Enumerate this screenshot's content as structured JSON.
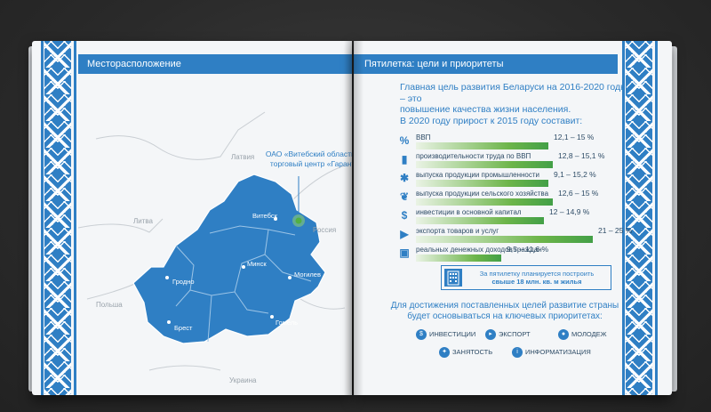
{
  "left_page": {
    "header": "Месторасположение",
    "callout": [
      "ОАО «Витебский областной",
      "торговый центр «Гарант»"
    ],
    "countries": [
      "Латвия",
      "Литва",
      "Россия",
      "Польша",
      "Украина"
    ],
    "cities": [
      "Витебск",
      "Минск",
      "Могилев",
      "Гродно",
      "Брест",
      "Гомель"
    ]
  },
  "right_page": {
    "header": "Пятилетка: цели и приоритеты",
    "intro": [
      "Главная цель развития Беларуси на 2016-2020 годы – это",
      "повышение качества жизни населения.",
      "В 2020 году прирост к 2015 году составит:"
    ],
    "rows": [
      {
        "icon": "percent-icon",
        "label": "ВВП",
        "value": "12,1 – 15 %",
        "fill": 0.62
      },
      {
        "icon": "chart-icon",
        "label": "производительности труда по ВВП",
        "value": "12,8 – 15,1 %",
        "fill": 0.64
      },
      {
        "icon": "gear-icon",
        "label": "выпуска продукции промышленности",
        "value": "9,1 – 15,2 %",
        "fill": 0.62
      },
      {
        "icon": "leaf-icon",
        "label": "выпуска продукции сельского хозяйства",
        "value": "12,6 – 15 %",
        "fill": 0.64
      },
      {
        "icon": "money-icon",
        "label": "инвестиции в основной капитал",
        "value": "12 – 14,9 %",
        "fill": 0.6
      },
      {
        "icon": "truck-icon",
        "label": "экспорта товаров и услуг",
        "value": "21 – 25 %",
        "fill": 0.83
      },
      {
        "icon": "wallet-icon",
        "label": "реальных денежных доходов граждан",
        "value": "9,5 – 11,6 %",
        "fill": 0.4
      }
    ],
    "infobox": [
      "За пятилетку планируется построить",
      "свыше 18 млн. кв. м жилья"
    ],
    "bottom_text": [
      "Для достижения поставленных целей развитие страны",
      "будет основываться на ключевых приоритетах:"
    ],
    "priorities": [
      "ИНВЕСТИЦИИ",
      "ЭКСПОРТ",
      "МОЛОДЕЖ",
      "ЗАНЯТОСТЬ",
      "ИНФОРМАТИЗАЦИЯ"
    ]
  }
}
